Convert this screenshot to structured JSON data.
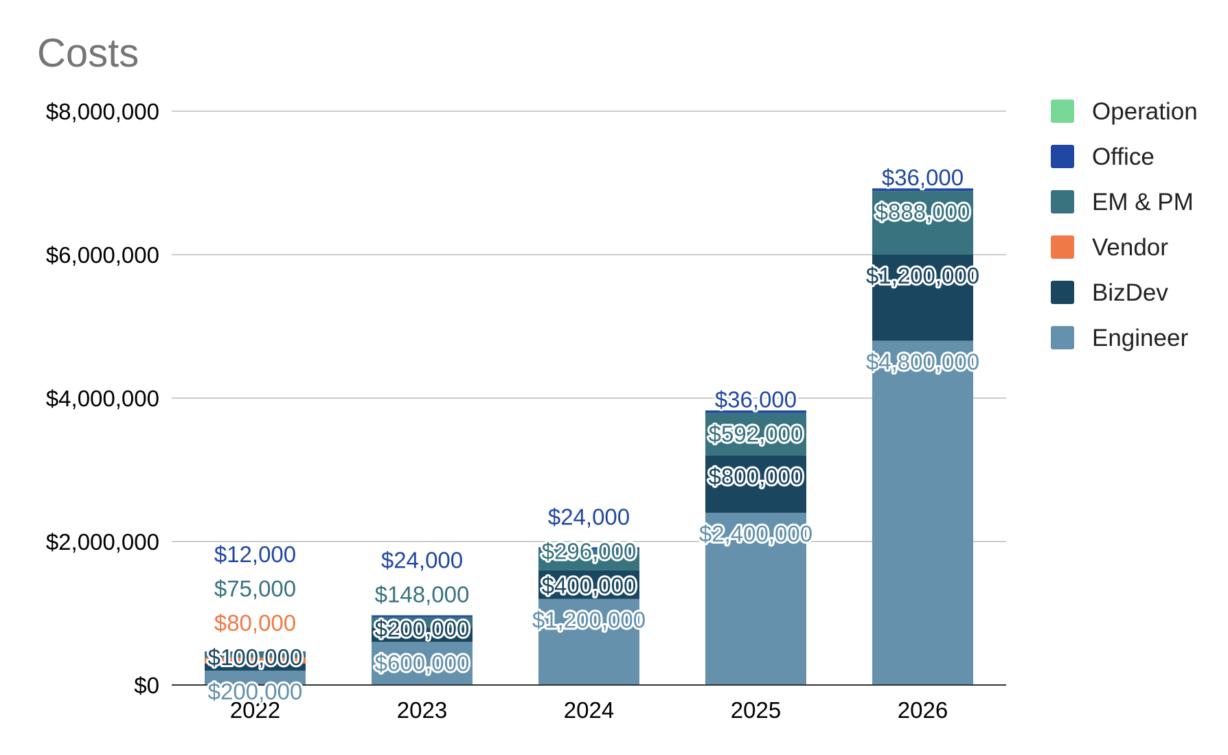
{
  "chart_data": {
    "type": "bar",
    "stacked": true,
    "title": "Costs",
    "xlabel": "",
    "ylabel": "",
    "categories": [
      "2022",
      "2023",
      "2024",
      "2025",
      "2026"
    ],
    "ylim": [
      0,
      8000000
    ],
    "yticks": [
      0,
      2000000,
      4000000,
      6000000,
      8000000
    ],
    "ytick_labels": [
      "$0",
      "$2,000,000",
      "$4,000,000",
      "$6,000,000",
      "$8,000,000"
    ],
    "grid": true,
    "legend_position": "right",
    "series": [
      {
        "name": "Engineer",
        "color": "#6591ad",
        "values": [
          200000,
          600000,
          1200000,
          2400000,
          4800000
        ],
        "labels": [
          "$200,000",
          "$600,000",
          "$1,200,000",
          "$2,400,000",
          "$4,800,000"
        ]
      },
      {
        "name": "BizDev",
        "color": "#1b4660",
        "values": [
          100000,
          200000,
          400000,
          800000,
          1200000
        ],
        "labels": [
          "$100,000",
          "$200,000",
          "$400,000",
          "$800,000",
          "$1,200,000"
        ]
      },
      {
        "name": "Vendor",
        "color": "#f07a47",
        "values": [
          80000,
          0,
          0,
          0,
          0
        ],
        "labels": [
          "$80,000",
          "",
          "",
          "",
          ""
        ]
      },
      {
        "name": "EM & PM",
        "color": "#38737f",
        "values": [
          75000,
          148000,
          296000,
          592000,
          888000
        ],
        "labels": [
          "$75,000",
          "$148,000",
          "$296,000",
          "$592,000",
          "$888,000"
        ]
      },
      {
        "name": "Office",
        "color": "#2047a4",
        "values": [
          12000,
          24000,
          24000,
          36000,
          36000
        ],
        "labels": [
          "$12,000",
          "$24,000",
          "$24,000",
          "$36,000",
          "$36,000"
        ]
      },
      {
        "name": "Operation",
        "color": "#77d898",
        "values": [
          0,
          0,
          0,
          0,
          0
        ],
        "labels": [
          "",
          "",
          "",
          "",
          ""
        ]
      }
    ],
    "legend_order": [
      "Operation",
      "Office",
      "EM & PM",
      "Vendor",
      "BizDev",
      "Engineer"
    ]
  }
}
